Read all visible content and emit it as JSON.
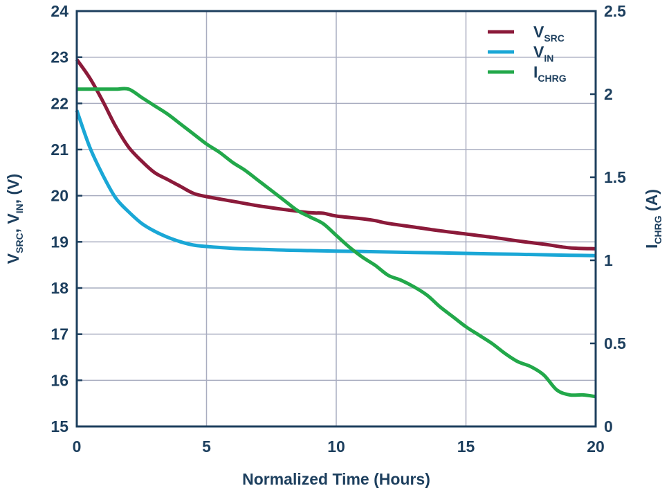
{
  "chart_data": {
    "type": "line",
    "xlabel": "Normalized Time (Hours)",
    "ylabel_left": {
      "parts": [
        "V",
        "SRC",
        ", V",
        "IN",
        ", (V)"
      ]
    },
    "ylabel_right": {
      "parts": [
        "I",
        "CHRG",
        " (A)"
      ]
    },
    "xlim": [
      0,
      20
    ],
    "ylim_left": [
      15,
      24
    ],
    "ylim_right": [
      0,
      2.5
    ],
    "x_ticks": [
      "0",
      "5",
      "10",
      "15",
      "20"
    ],
    "y_ticks_left": [
      "15",
      "16",
      "17",
      "18",
      "19",
      "20",
      "21",
      "22",
      "23",
      "24"
    ],
    "y_ticks_right": [
      "0",
      "0.5",
      "1",
      "1.5",
      "2",
      "2.5"
    ],
    "grid": true,
    "legend_position": "top-right",
    "series": [
      {
        "name": "VSRC",
        "name_main": "V",
        "name_sub": "SRC",
        "color": "#8b1a3a",
        "axis": "left",
        "x": [
          0,
          0.5,
          1,
          1.5,
          2,
          2.5,
          3,
          3.5,
          4,
          4.5,
          5,
          6,
          7,
          8,
          9,
          9.5,
          10,
          11,
          11.5,
          12,
          13,
          14,
          15,
          16,
          17,
          18,
          19,
          20
        ],
        "y": [
          22.95,
          22.55,
          22.05,
          21.5,
          21.05,
          20.75,
          20.5,
          20.35,
          20.2,
          20.05,
          19.98,
          19.88,
          19.78,
          19.7,
          19.63,
          19.62,
          19.56,
          19.5,
          19.46,
          19.4,
          19.32,
          19.24,
          19.17,
          19.1,
          19.02,
          18.95,
          18.87,
          18.85
        ]
      },
      {
        "name": "VIN",
        "name_main": "V",
        "name_sub": "IN",
        "color": "#1aa7d6",
        "axis": "left",
        "x": [
          0,
          0.5,
          1,
          1.5,
          2,
          2.5,
          3,
          3.5,
          4,
          4.5,
          5,
          6,
          7,
          8,
          9,
          10,
          11,
          12,
          13,
          14,
          15,
          16,
          17,
          18,
          19,
          20
        ],
        "y": [
          21.85,
          21.05,
          20.45,
          19.95,
          19.65,
          19.4,
          19.23,
          19.1,
          19.0,
          18.93,
          18.9,
          18.86,
          18.84,
          18.82,
          18.81,
          18.8,
          18.79,
          18.78,
          18.77,
          18.76,
          18.75,
          18.74,
          18.73,
          18.72,
          18.71,
          18.7
        ]
      },
      {
        "name": "ICHRG",
        "name_main": "I",
        "name_sub": "CHRG",
        "color": "#22a84a",
        "axis": "right",
        "x": [
          0,
          0.5,
          1,
          1.5,
          2,
          2.5,
          3,
          3.5,
          4,
          4.5,
          5,
          5.5,
          6,
          6.5,
          7,
          7.5,
          8,
          8.5,
          9,
          9.5,
          10,
          10.5,
          11,
          11.5,
          12,
          12.5,
          13,
          13.5,
          14,
          14.5,
          15,
          15.5,
          16,
          16.5,
          17,
          17.5,
          18,
          18.5,
          19,
          19.5,
          20
        ],
        "y": [
          2.03,
          2.03,
          2.03,
          2.03,
          2.03,
          1.98,
          1.93,
          1.88,
          1.82,
          1.76,
          1.7,
          1.65,
          1.59,
          1.54,
          1.48,
          1.42,
          1.36,
          1.3,
          1.26,
          1.22,
          1.15,
          1.08,
          1.02,
          0.97,
          0.91,
          0.88,
          0.84,
          0.79,
          0.72,
          0.66,
          0.6,
          0.55,
          0.5,
          0.44,
          0.39,
          0.36,
          0.31,
          0.22,
          0.19,
          0.19,
          0.18
        ]
      }
    ]
  }
}
